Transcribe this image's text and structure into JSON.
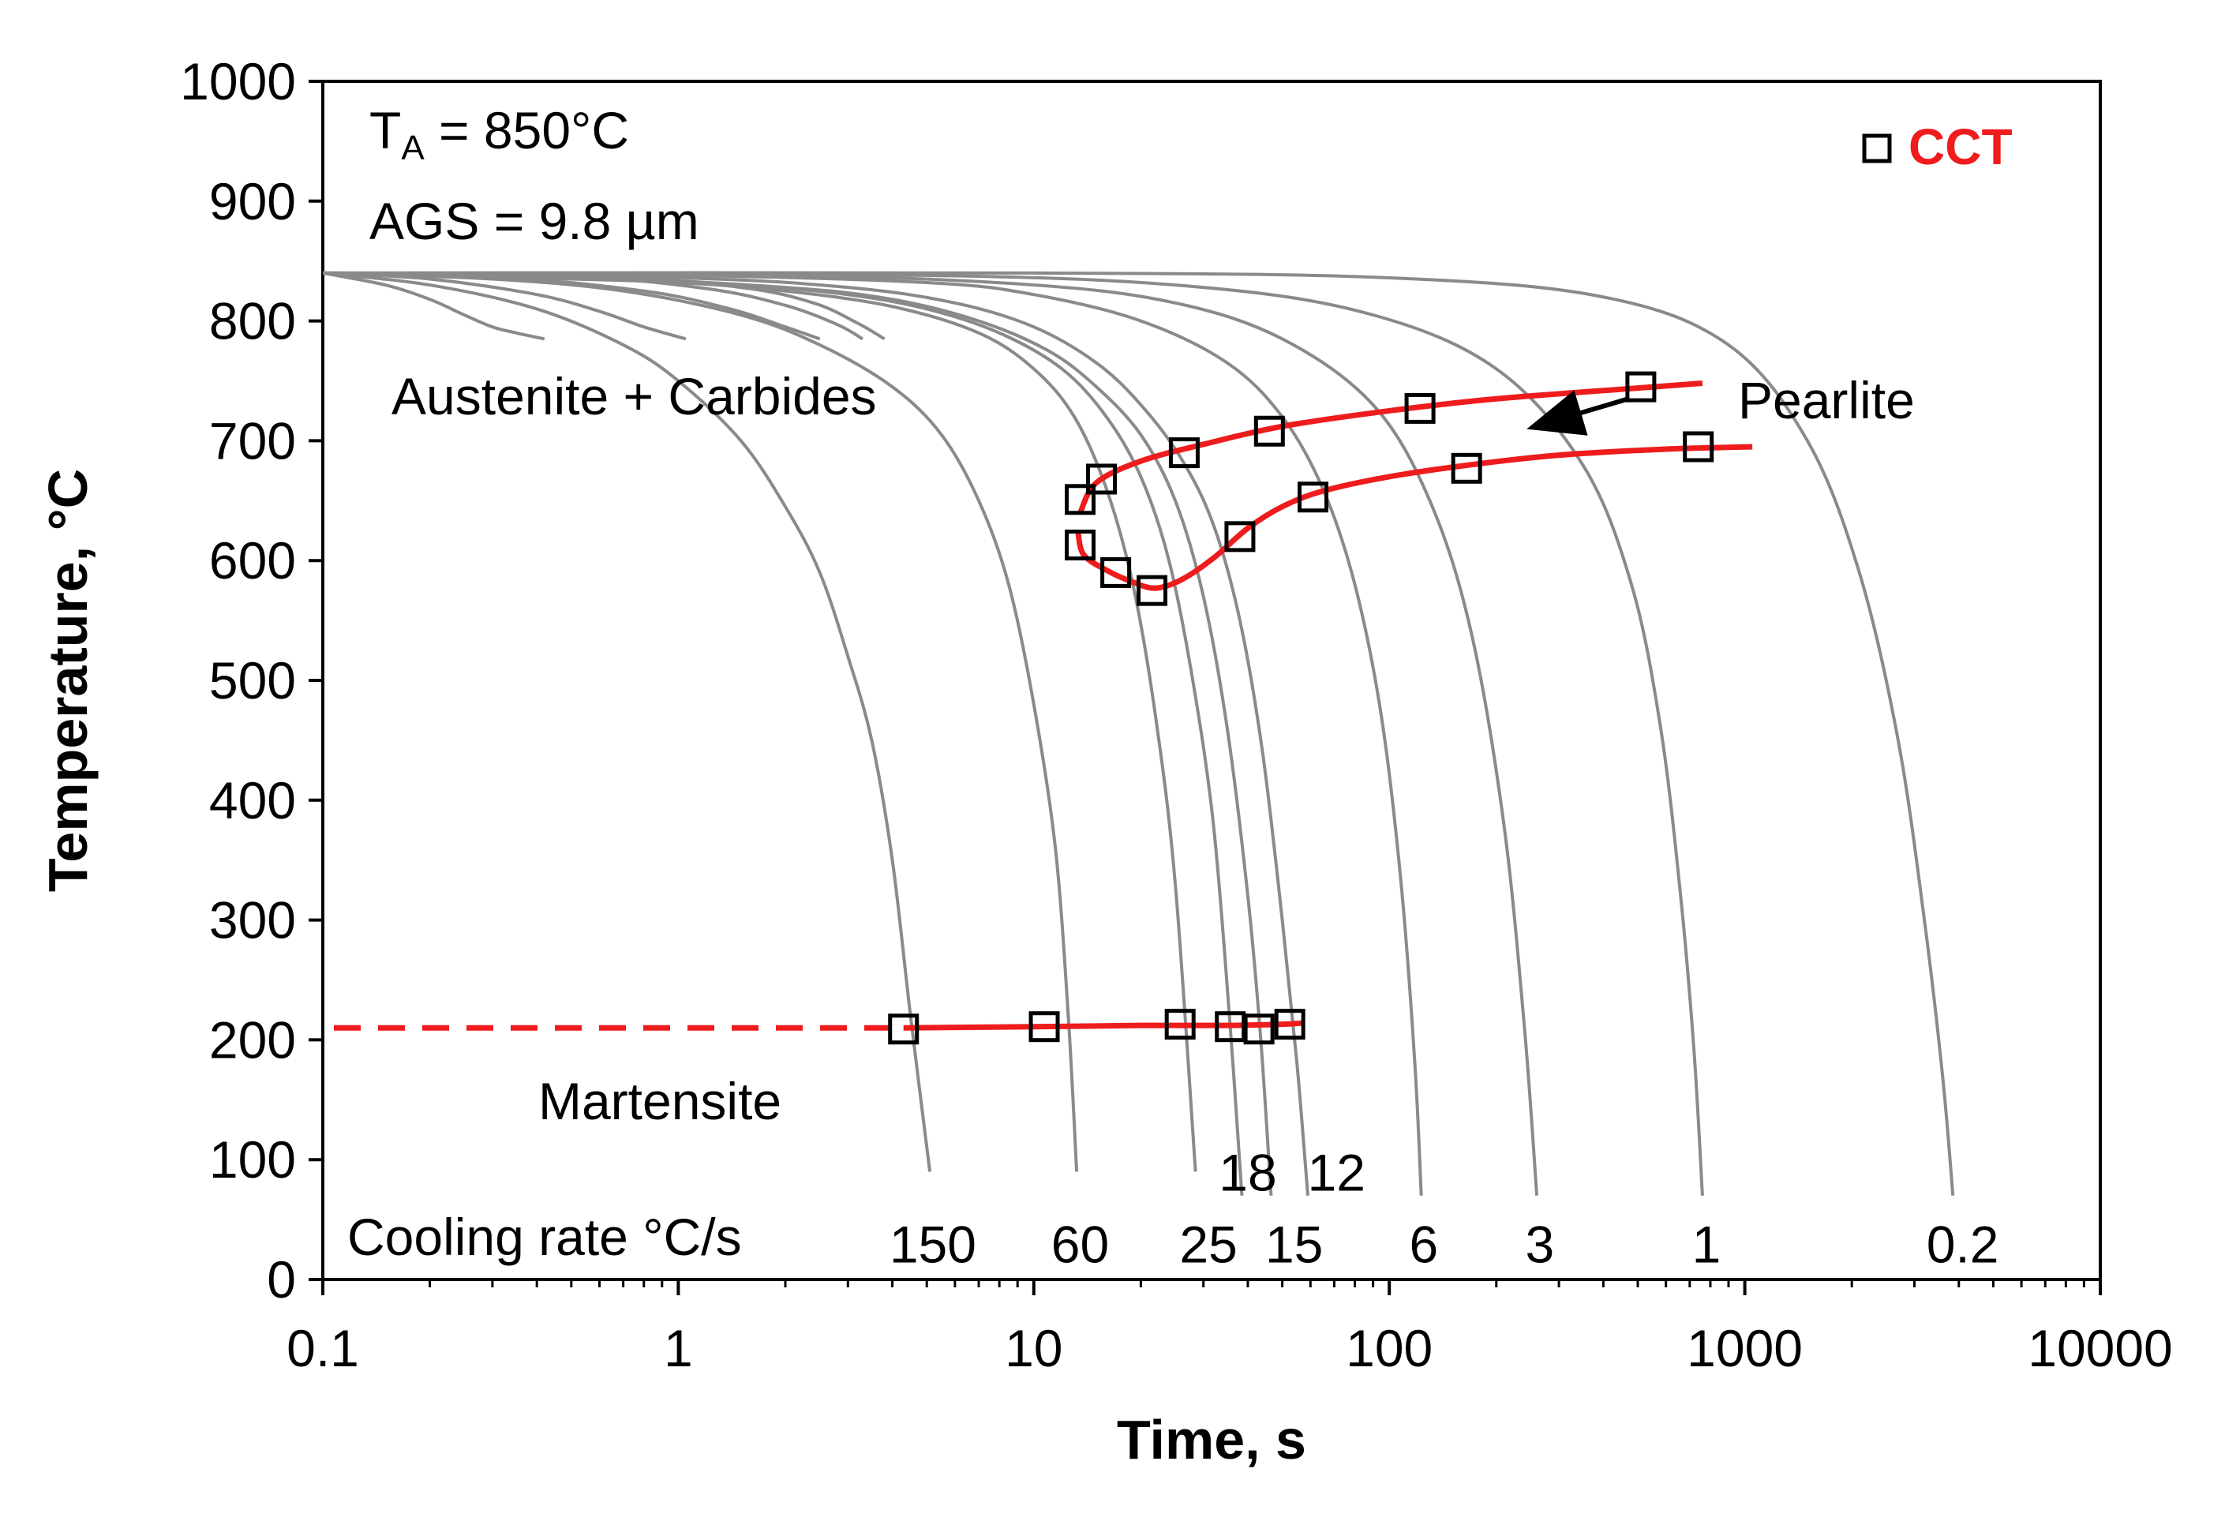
{
  "chart_data": {
    "type": "line",
    "title": "",
    "xlabel": "Time, s",
    "ylabel": "Temperature, °C",
    "x_scale": "log",
    "xlim": [
      0.1,
      10000
    ],
    "ylim": [
      0,
      1000
    ],
    "x_ticks": [
      0.1,
      1,
      10,
      100,
      1000,
      10000
    ],
    "x_tick_labels": [
      "0.1",
      "1",
      "10",
      "100",
      "1000",
      "10000"
    ],
    "y_ticks": [
      0,
      100,
      200,
      300,
      400,
      500,
      600,
      700,
      800,
      900,
      1000
    ],
    "y_tick_labels": [
      "0",
      "100",
      "200",
      "300",
      "400",
      "500",
      "600",
      "700",
      "800",
      "900",
      "1000"
    ],
    "grid": false,
    "legend": {
      "position": "top-right",
      "entries": [
        {
          "label": "CCT",
          "color": "#ee1c1c",
          "marker": "open-square"
        }
      ]
    },
    "colors": {
      "cooling_curve": "#8a8a8a",
      "transformation": "#ee1c1c",
      "marker": "#000000"
    },
    "annotations": {
      "ta_main": "T",
      "ta_sub": "A",
      "ta_rest": " = 850°C",
      "ags": "AGS = 9.8 µm",
      "austenite": "Austenite + Carbides",
      "pearlite": "Pearlite",
      "martensite": "Martensite",
      "cooling_rate_prefix": "Cooling rate °C/s"
    },
    "cooling_rate_labels": [
      {
        "label": "150",
        "x": 5.2,
        "y": 30
      },
      {
        "label": "60",
        "x": 13.5,
        "y": 30
      },
      {
        "label": "25",
        "x": 31,
        "y": 30
      },
      {
        "label": "15",
        "x": 54,
        "y": 30
      },
      {
        "label": "6",
        "x": 125,
        "y": 30
      },
      {
        "label": "3",
        "x": 265,
        "y": 30
      },
      {
        "label": "1",
        "x": 780,
        "y": 30
      },
      {
        "label": "0.2",
        "x": 4100,
        "y": 30
      },
      {
        "label": "18",
        "x": 40,
        "y": 90
      },
      {
        "label": "12",
        "x": 71,
        "y": 90
      }
    ],
    "cooling_curves": [
      {
        "rate": "150",
        "x": [
          0.1,
          0.2,
          0.4,
          0.7,
          1,
          1.5,
          2,
          2.5,
          3,
          3.5,
          4,
          4.5,
          5.1
        ],
        "y": [
          840,
          830,
          810,
          780,
          750,
          700,
          645,
          590,
          520,
          450,
          350,
          220,
          90
        ]
      },
      {
        "rate": "60",
        "x": [
          0.1,
          0.3,
          0.7,
          1.5,
          2.5,
          4,
          5.5,
          7,
          8.5,
          10,
          11.5,
          12.5,
          13.2
        ],
        "y": [
          840,
          835,
          825,
          805,
          780,
          745,
          705,
          650,
          580,
          480,
          360,
          220,
          90
        ]
      },
      {
        "rate": "25",
        "x": [
          0.1,
          0.5,
          1,
          2,
          4,
          7,
          10,
          13,
          16,
          19,
          22,
          25,
          28.5
        ],
        "y": [
          840,
          835,
          832,
          825,
          812,
          790,
          760,
          720,
          660,
          580,
          470,
          330,
          90
        ]
      },
      {
        "rate": "18",
        "x": [
          0.1,
          0.5,
          1.5,
          3,
          5,
          8,
          12,
          16,
          20,
          24,
          28,
          32,
          35.5,
          38.5
        ],
        "y": [
          840,
          836,
          830,
          822,
          810,
          790,
          760,
          720,
          670,
          600,
          500,
          380,
          220,
          70
        ]
      },
      {
        "rate": "15",
        "x": [
          0.1,
          0.5,
          2,
          4,
          7,
          11,
          15,
          20,
          25,
          30,
          35,
          40,
          43.5,
          46.5
        ],
        "y": [
          840,
          837,
          828,
          818,
          800,
          775,
          745,
          705,
          650,
          570,
          460,
          320,
          200,
          70
        ]
      },
      {
        "rate": "12",
        "x": [
          0.1,
          1,
          3,
          6,
          10,
          15,
          20,
          26,
          32,
          38,
          44,
          50,
          55,
          59
        ],
        "y": [
          840,
          836,
          828,
          815,
          795,
          765,
          730,
          685,
          630,
          550,
          440,
          300,
          180,
          70
        ]
      },
      {
        "rate": "6",
        "x": [
          0.1,
          1,
          5,
          10,
          20,
          35,
          50,
          65,
          80,
          95,
          108,
          118,
          123
        ],
        "y": [
          840,
          838,
          832,
          822,
          800,
          765,
          720,
          660,
          580,
          470,
          330,
          180,
          70
        ]
      },
      {
        "rate": "3",
        "x": [
          0.1,
          2,
          10,
          25,
          50,
          90,
          130,
          170,
          210,
          240,
          260
        ],
        "y": [
          840,
          838,
          830,
          815,
          785,
          730,
          650,
          540,
          380,
          210,
          70
        ]
      },
      {
        "rate": "1",
        "x": [
          0.1,
          5,
          30,
          90,
          200,
          350,
          480,
          580,
          660,
          720,
          760
        ],
        "y": [
          840,
          838,
          828,
          805,
          760,
          680,
          580,
          460,
          320,
          190,
          70
        ]
      },
      {
        "rate": "0.2",
        "x": [
          0.1,
          10,
          100,
          400,
          900,
          1500,
          2100,
          2700,
          3200,
          3600,
          3850
        ],
        "y": [
          840,
          840,
          836,
          820,
          780,
          700,
          590,
          450,
          300,
          170,
          70
        ]
      },
      {
        "rate": "",
        "x": [
          0.1,
          0.15,
          0.2,
          0.25,
          0.3,
          0.35,
          0.42
        ],
        "y": [
          840,
          830,
          818,
          805,
          795,
          790,
          785
        ]
      },
      {
        "rate": "",
        "x": [
          0.1,
          0.2,
          0.4,
          0.6,
          0.8,
          1.05
        ],
        "y": [
          840,
          835,
          822,
          808,
          795,
          785
        ]
      },
      {
        "rate": "",
        "x": [
          0.1,
          0.3,
          0.8,
          1.4,
          2.0,
          2.5
        ],
        "y": [
          840,
          837,
          825,
          810,
          795,
          785
        ]
      },
      {
        "rate": "",
        "x": [
          0.1,
          0.5,
          1.2,
          2.0,
          2.8,
          3.3
        ],
        "y": [
          840,
          837,
          827,
          813,
          797,
          785
        ]
      },
      {
        "rate": "",
        "x": [
          0.1,
          0.6,
          1.5,
          2.4,
          3.2,
          3.8
        ],
        "y": [
          840,
          837,
          828,
          815,
          798,
          785
        ]
      }
    ],
    "series": [
      {
        "name": "CCT",
        "kind": "pearlite-start",
        "x": [
          13.5,
          15.5,
          26.5,
          46,
          122,
          510
        ],
        "y": [
          651,
          668,
          690,
          708,
          727,
          745
        ]
      },
      {
        "name": "CCT",
        "kind": "pearlite-finish",
        "x": [
          13.5,
          17,
          21.5,
          38,
          61,
          165,
          740
        ],
        "y": [
          613,
          590,
          575,
          620,
          653,
          677,
          695
        ]
      },
      {
        "name": "CCT",
        "kind": "martensite-start",
        "x": [
          4.3,
          10.7,
          25.8,
          35.7,
          43,
          52.5
        ],
        "y": [
          209,
          211,
          213,
          211,
          209,
          213
        ]
      }
    ],
    "curves": {
      "pearlite_start_line": {
        "x": [
          13.5,
          15,
          20,
          30,
          50,
          100,
          200,
          500,
          760
        ],
        "y": [
          640,
          665,
          683,
          697,
          712,
          725,
          735,
          744,
          748
        ]
      },
      "pearlite_finish_line": {
        "x": [
          13.3,
          13.8,
          16,
          19,
          22,
          26,
          32,
          40,
          50,
          65,
          100,
          170,
          300,
          600,
          1050
        ],
        "y": [
          625,
          605,
          592,
          582,
          577,
          584,
          602,
          627,
          645,
          658,
          670,
          680,
          688,
          693,
          695
        ]
      },
      "martensite_line": {
        "x": [
          4.3,
          10,
          20,
          35,
          50,
          57
        ],
        "y": [
          210,
          211,
          212,
          212,
          213,
          214
        ]
      },
      "martensite_dashed": {
        "x": [
          0.1,
          4.3
        ],
        "y": [
          210,
          210
        ]
      },
      "pearlite_arrow": {
        "from": [
          470,
          735
        ],
        "to": [
          258,
          712
        ]
      }
    }
  }
}
